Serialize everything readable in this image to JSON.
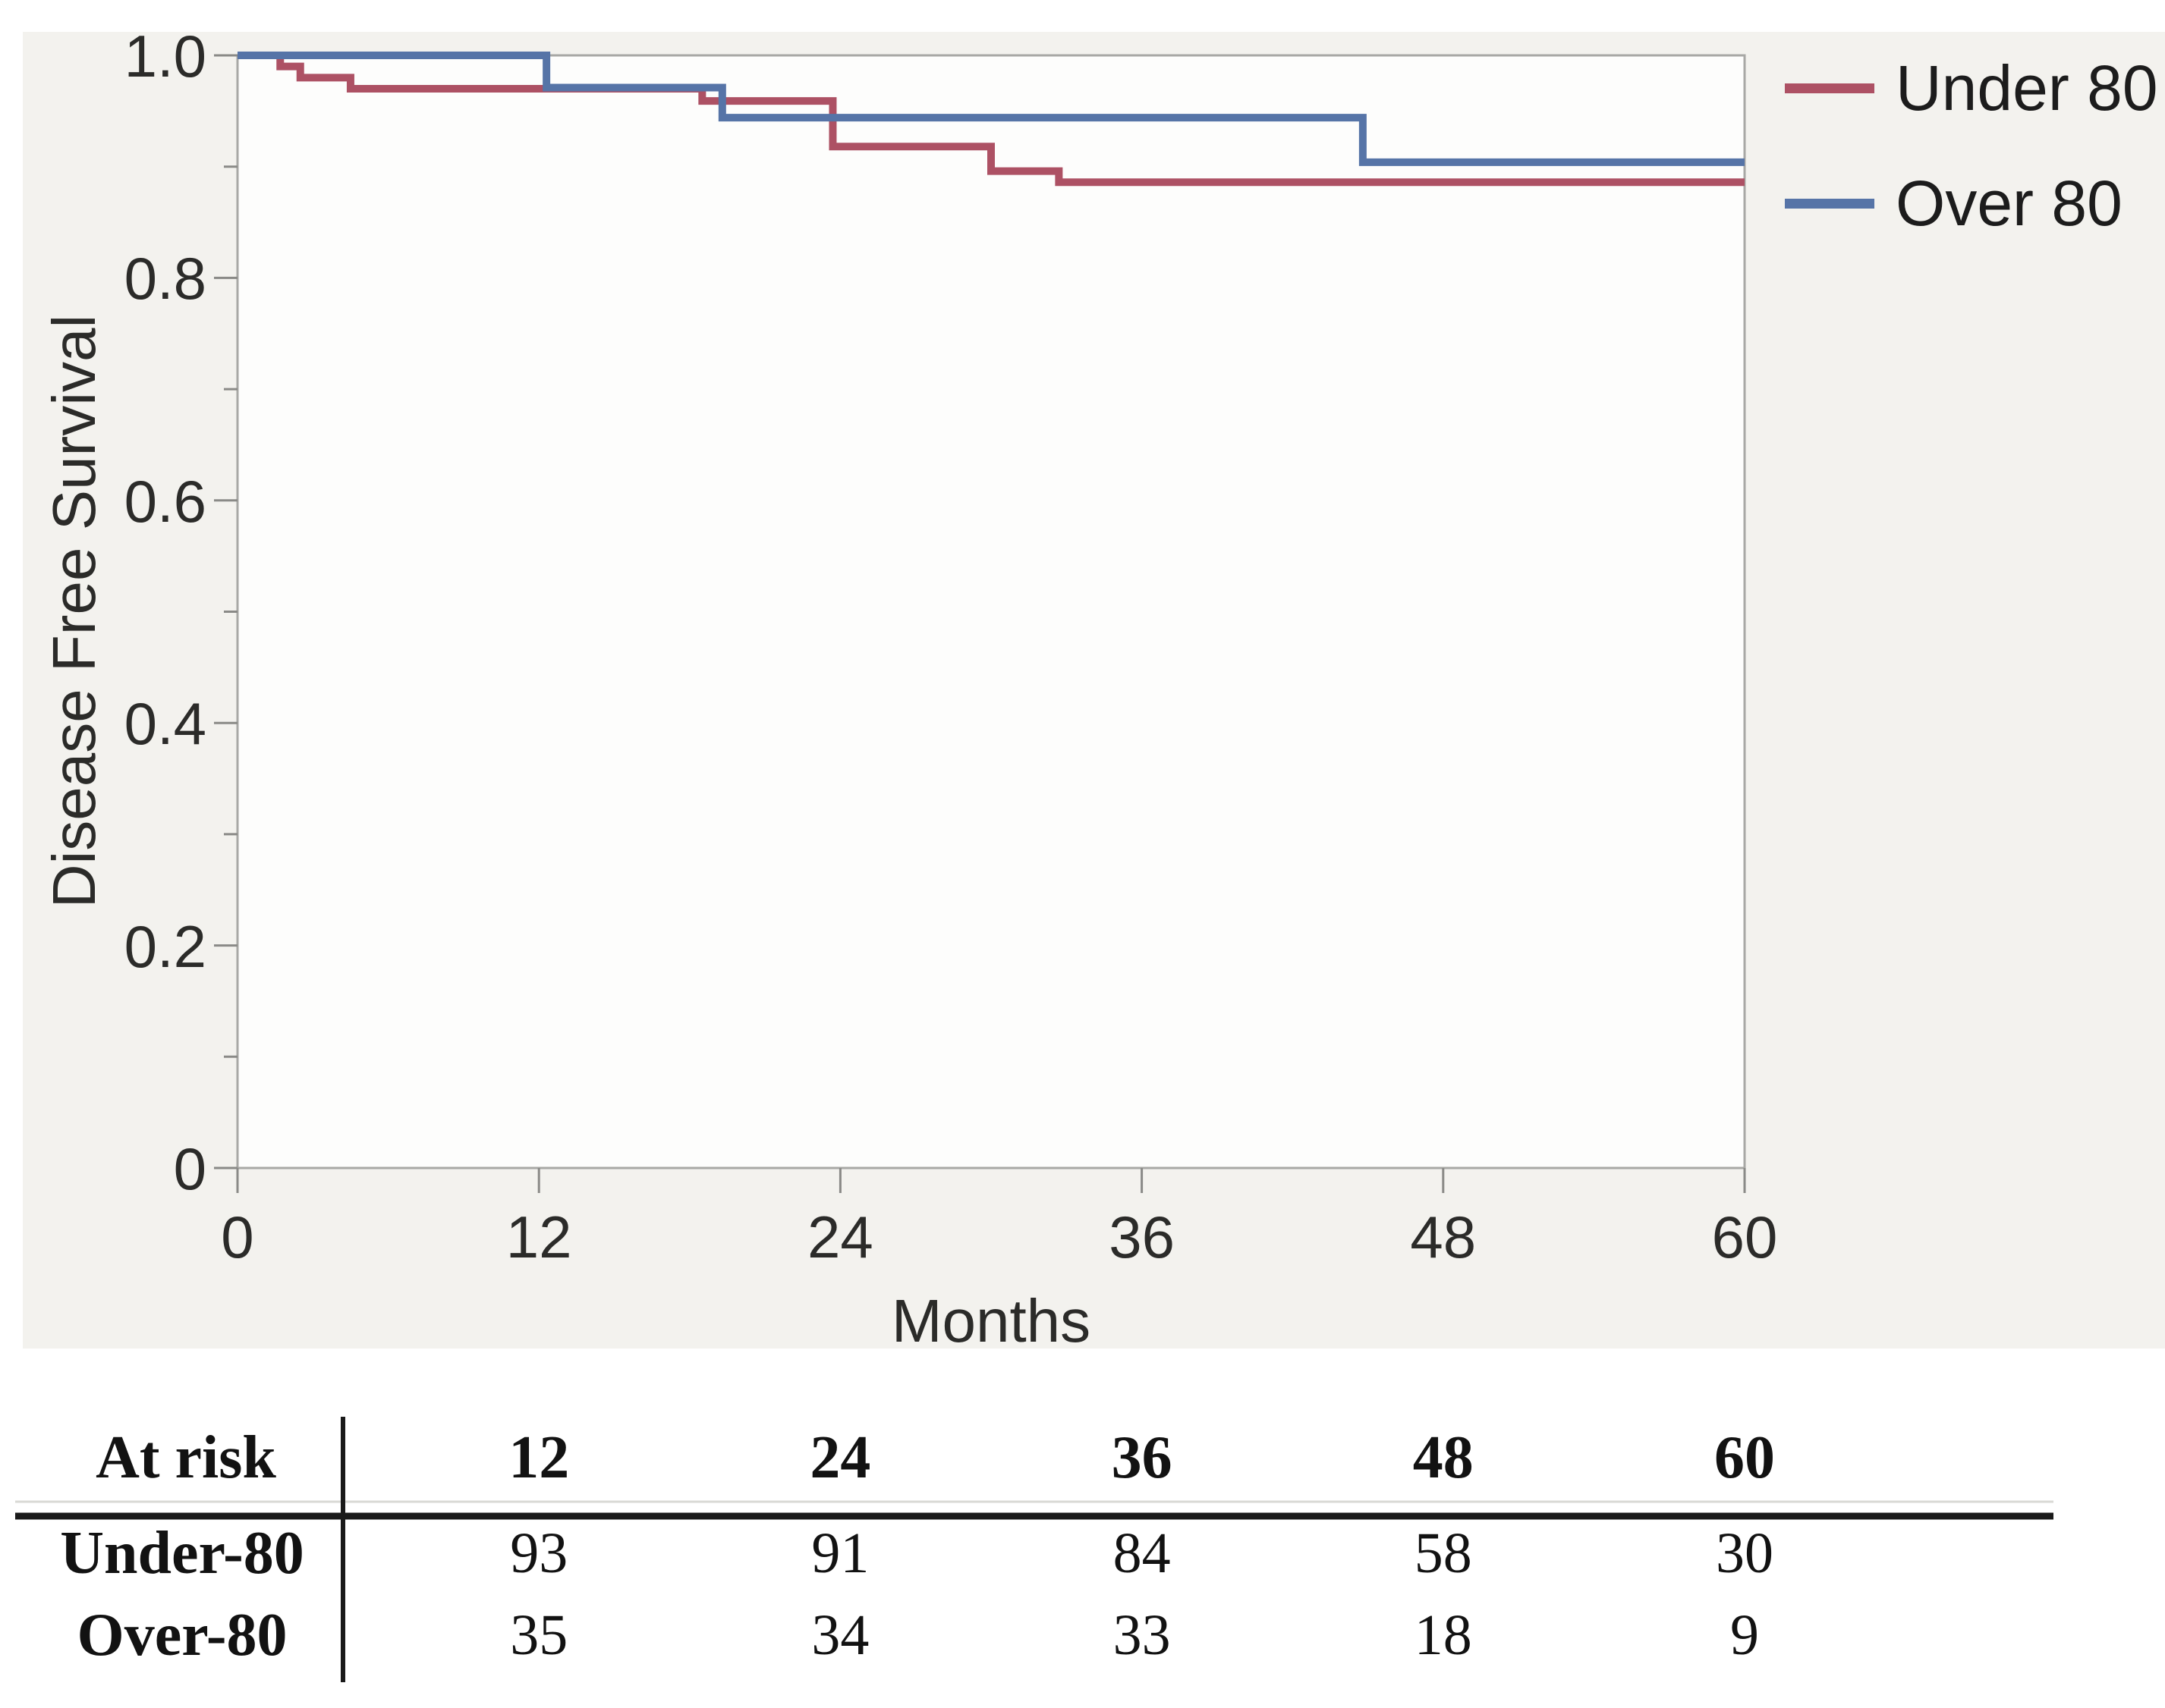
{
  "figure": {
    "y_axis": {
      "title": "Disease Free Survival",
      "tick_labels": [
        "1.0",
        "0.8",
        "0.6",
        "0.4",
        "0.2",
        "0"
      ],
      "tick_values": [
        1.0,
        0.8,
        0.6,
        0.4,
        0.2,
        0
      ],
      "minor_tick_values": [
        0.9,
        0.7,
        0.5,
        0.3,
        0.1
      ]
    },
    "x_axis": {
      "title": "Months",
      "tick_labels": [
        "0",
        "12",
        "24",
        "36",
        "48",
        "60"
      ],
      "tick_values": [
        0,
        12,
        24,
        36,
        48,
        60
      ]
    },
    "legend": [
      {
        "label": "Under 80",
        "color": "#ad5164"
      },
      {
        "label": "Over 80",
        "color": "#5674a7"
      }
    ]
  },
  "chart_data": {
    "type": "line",
    "subtype": "kaplan-meier-step",
    "title": "",
    "xlabel": "Months",
    "ylabel": "Disease Free Survival",
    "xlim": [
      0,
      60
    ],
    "ylim": [
      0,
      1.0
    ],
    "x_ticks": [
      0,
      12,
      24,
      36,
      48,
      60
    ],
    "y_ticks": [
      0,
      0.2,
      0.4,
      0.6,
      0.8,
      1.0
    ],
    "grid": false,
    "legend_position": "top-right-outside",
    "series": [
      {
        "name": "Under 80",
        "color": "#ad5164",
        "steps": [
          [
            0,
            1.0
          ],
          [
            1.7,
            0.99
          ],
          [
            2.5,
            0.98
          ],
          [
            4.5,
            0.97
          ],
          [
            18.5,
            0.959
          ],
          [
            23.7,
            0.918
          ],
          [
            30.0,
            0.896
          ],
          [
            32.7,
            0.886
          ]
        ],
        "end_x": 60,
        "final_value": 0.886
      },
      {
        "name": "Over 80",
        "color": "#5674a7",
        "steps": [
          [
            0,
            1.0
          ],
          [
            12.3,
            0.971
          ],
          [
            19.3,
            0.944
          ],
          [
            44.8,
            0.904
          ]
        ],
        "end_x": 60,
        "final_value": 0.904
      }
    ]
  },
  "at_risk_table": {
    "header_label": "At risk",
    "time_points": [
      "12",
      "24",
      "36",
      "48",
      "60"
    ],
    "rows": [
      {
        "label": "Under-80",
        "values": [
          "93",
          "91",
          "84",
          "58",
          "30"
        ]
      },
      {
        "label": "Over-80",
        "values": [
          "35",
          "34",
          "33",
          "18",
          "9"
        ]
      }
    ]
  },
  "colors": {
    "under_80_line": "#ad5164",
    "over_80_line": "#5674a7",
    "figure_background": "#f3f2ee",
    "plot_background": "#fdfdfc",
    "frame": "#a8a8a5",
    "tick": "#8a8a87",
    "axis_text": "#2b2b29",
    "table_text": "#121212",
    "table_rule": "#1a1a1a"
  }
}
